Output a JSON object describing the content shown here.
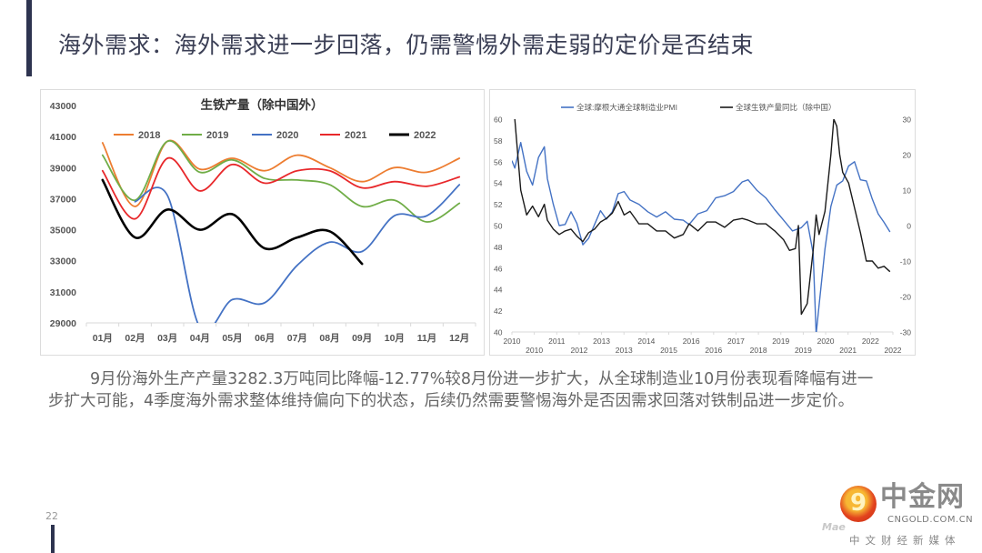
{
  "page": {
    "title": "海外需求：海外需求进一步回落，仍需警惕外需走弱的定价是否结束",
    "body_paragraph": "9月份海外生产产量3282.3万吨同比降幅-12.77%较8月份进一步扩大，从全球制造业10月份表现看降幅有进一步扩大可能，4季度海外需求整体维持偏向下的状态，后续仍然需要警惕海外是否因需求回落对铁制品进一步定价。",
    "page_number": "22",
    "logo": {
      "brand": "中金网",
      "domain": "CNGOLD.COM.CN",
      "tagline": "中文财经新媒体",
      "ghost_text": "Mae"
    }
  },
  "chart_data": [
    {
      "type": "line",
      "title": "生铁产量（除中国外）",
      "xlabel": "",
      "ylabel": "",
      "categories": [
        "01月",
        "02月",
        "03月",
        "04月",
        "05月",
        "06月",
        "07月",
        "08月",
        "09月",
        "10月",
        "11月",
        "12月"
      ],
      "ylim": [
        29000,
        43000
      ],
      "yticks": [
        29000,
        31000,
        33000,
        35000,
        37000,
        39000,
        41000,
        43000
      ],
      "legend_position": "top",
      "grid": false,
      "series": [
        {
          "name": "2018",
          "color": "#ed7d31",
          "values": [
            40600,
            36500,
            40700,
            38900,
            39600,
            38800,
            39800,
            39000,
            38100,
            39000,
            38700,
            39600
          ]
        },
        {
          "name": "2019",
          "color": "#70ad47",
          "values": [
            39800,
            36900,
            40700,
            38700,
            39500,
            38300,
            38200,
            37900,
            36500,
            36900,
            35500,
            36700
          ]
        },
        {
          "name": "2020",
          "color": "#4472c4",
          "values": [
            null,
            36800,
            37200,
            28700,
            30500,
            30300,
            32700,
            34200,
            33600,
            35900,
            35900,
            37900
          ]
        },
        {
          "name": "2021",
          "color": "#e8282b",
          "values": [
            38800,
            35700,
            39600,
            37500,
            39200,
            38000,
            38800,
            38800,
            37700,
            38100,
            37800,
            38400
          ]
        },
        {
          "name": "2022",
          "color": "#000000",
          "values": [
            38200,
            34500,
            36300,
            35000,
            36000,
            33800,
            34500,
            34900,
            32800,
            null,
            null,
            null
          ]
        }
      ]
    },
    {
      "type": "line",
      "title": "",
      "x_tick_labels": [
        "2010",
        "2010",
        "2011",
        "2012",
        "2013",
        "2013",
        "2014",
        "2015",
        "2016",
        "2016",
        "2017",
        "2018",
        "2019",
        "2019",
        "2020",
        "2021",
        "2022",
        "2022"
      ],
      "xlim": [
        2010.0,
        2022.9
      ],
      "ylim_left": [
        40,
        60
      ],
      "yticks_left": [
        40,
        42,
        44,
        46,
        48,
        50,
        52,
        54,
        56,
        58,
        60
      ],
      "ylim_right": [
        -30,
        30
      ],
      "yticks_right": [
        -30,
        -20,
        -10,
        0,
        10,
        20,
        30
      ],
      "legend_position": "top",
      "grid": false,
      "series": [
        {
          "name": "全球:摩根大通全球制造业PMI",
          "axis": "left",
          "color": "#4472c4",
          "x": [
            2010.0,
            2010.1,
            2010.3,
            2010.5,
            2010.7,
            2010.9,
            2011.1,
            2011.2,
            2011.4,
            2011.6,
            2011.8,
            2012.0,
            2012.2,
            2012.4,
            2012.6,
            2012.8,
            2013.0,
            2013.2,
            2013.4,
            2013.6,
            2013.8,
            2014.0,
            2014.3,
            2014.6,
            2014.9,
            2015.2,
            2015.5,
            2015.8,
            2016.0,
            2016.3,
            2016.6,
            2016.9,
            2017.2,
            2017.5,
            2017.8,
            2018.0,
            2018.3,
            2018.6,
            2018.9,
            2019.2,
            2019.5,
            2019.8,
            2020.0,
            2020.2,
            2020.3,
            2020.4,
            2020.6,
            2020.8,
            2021.0,
            2021.2,
            2021.4,
            2021.6,
            2021.8,
            2022.0,
            2022.2,
            2022.4,
            2022.6,
            2022.8
          ],
          "y": [
            56.1,
            55.4,
            57.8,
            55.1,
            53.8,
            56.4,
            57.4,
            54.4,
            52.0,
            50.0,
            50.1,
            51.3,
            50.2,
            48.2,
            48.8,
            50.1,
            51.4,
            50.6,
            51.3,
            53.0,
            53.2,
            52.4,
            52.0,
            51.3,
            50.8,
            51.3,
            50.6,
            50.5,
            50.1,
            51.1,
            51.4,
            52.6,
            52.8,
            53.2,
            54.1,
            54.3,
            53.3,
            52.6,
            51.5,
            50.5,
            49.5,
            49.8,
            50.4,
            47.4,
            39.8,
            42.5,
            47.8,
            51.8,
            53.8,
            54.2,
            55.6,
            56.0,
            54.3,
            54.2,
            52.5,
            51.1,
            50.3,
            49.4
          ]
        },
        {
          "name": "全球生铁产量同比（除中国）",
          "axis": "right",
          "color": "#1a1a1a",
          "x": [
            2010.1,
            2010.3,
            2010.5,
            2010.7,
            2010.9,
            2011.1,
            2011.2,
            2011.4,
            2011.6,
            2011.8,
            2012.0,
            2012.2,
            2012.4,
            2012.6,
            2012.8,
            2013.0,
            2013.2,
            2013.4,
            2013.6,
            2013.8,
            2014.0,
            2014.3,
            2014.6,
            2014.9,
            2015.2,
            2015.5,
            2015.8,
            2016.0,
            2016.3,
            2016.6,
            2016.9,
            2017.2,
            2017.5,
            2017.8,
            2018.0,
            2018.3,
            2018.6,
            2018.9,
            2019.2,
            2019.4,
            2019.6,
            2019.7,
            2019.8,
            2020.0,
            2020.2,
            2020.3,
            2020.4,
            2020.6,
            2020.8,
            2020.9,
            2021.0,
            2021.1,
            2021.2,
            2021.4,
            2021.6,
            2021.8,
            2022.0,
            2022.2,
            2022.4,
            2022.6,
            2022.8
          ],
          "y": [
            30.0,
            10.0,
            3.0,
            5.5,
            2.5,
            6.0,
            1.5,
            -1.0,
            -2.5,
            -1.5,
            -1.0,
            -3.0,
            -4.5,
            -2.0,
            -1.0,
            1.0,
            2.0,
            3.5,
            6.8,
            3.0,
            4.0,
            0.5,
            0.5,
            -1.5,
            -1.5,
            -3.5,
            -2.5,
            0.5,
            -1.5,
            1.0,
            1.0,
            -0.5,
            1.5,
            2.0,
            1.5,
            0.5,
            0.5,
            -1.5,
            -4.0,
            -7.0,
            -6.5,
            0.0,
            -25.0,
            -22.0,
            -7.0,
            3.0,
            -2.5,
            4.0,
            20.0,
            30.0,
            28.0,
            20.0,
            15.0,
            12.0,
            5.0,
            -2.0,
            -10.0,
            -10.0,
            -12.0,
            -11.5,
            -13.0
          ]
        }
      ]
    }
  ]
}
